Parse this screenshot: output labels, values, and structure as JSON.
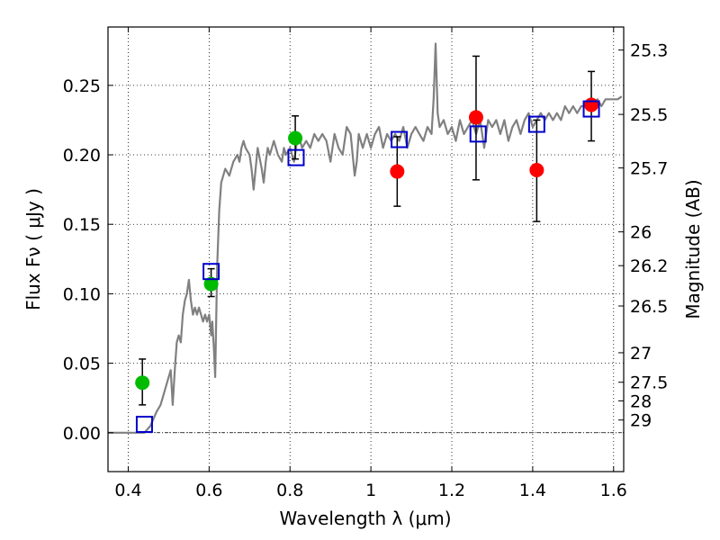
{
  "chart_data": {
    "type": "scatter",
    "xlabel": "Wavelength  λ (μm)",
    "ylabel": "Flux  Fν  ( μJy )",
    "ylabel_right": "Magnitude (AB)",
    "xlim": [
      0.35,
      1.625
    ],
    "ylim": [
      -0.028,
      0.292
    ],
    "x_ticks": [
      0.4,
      0.6,
      0.8,
      1.0,
      1.2,
      1.4,
      1.6
    ],
    "x_tick_labels": [
      "0.4",
      "0.6",
      "0.8",
      "1",
      "1.2",
      "1.4",
      "1.6"
    ],
    "y_ticks": [
      0.0,
      0.05,
      0.1,
      0.15,
      0.2,
      0.25
    ],
    "y_tick_labels": [
      "0.00",
      "0.05",
      "0.10",
      "0.15",
      "0.20",
      "0.25"
    ],
    "mag_ticks": [
      25.3,
      25.5,
      25.7,
      26,
      26.2,
      26.5,
      27,
      27.5,
      28,
      29
    ],
    "mag_tick_labels": [
      "25.3",
      "25.5",
      "25.7",
      "26",
      "26.2",
      "26.5",
      "27",
      "27.5",
      "28",
      "29"
    ],
    "grid": true,
    "series": [
      {
        "kind": "line",
        "color": "#808080",
        "x": [
          0.35,
          0.44,
          0.455,
          0.47,
          0.48,
          0.49,
          0.5,
          0.505,
          0.51,
          0.515,
          0.52,
          0.525,
          0.53,
          0.535,
          0.54,
          0.545,
          0.55,
          0.555,
          0.56,
          0.565,
          0.57,
          0.575,
          0.58,
          0.585,
          0.59,
          0.595,
          0.6,
          0.605,
          0.608,
          0.612,
          0.615,
          0.62,
          0.625,
          0.63,
          0.64,
          0.65,
          0.66,
          0.67,
          0.675,
          0.68,
          0.685,
          0.69,
          0.7,
          0.705,
          0.71,
          0.72,
          0.73,
          0.735,
          0.74,
          0.745,
          0.75,
          0.76,
          0.77,
          0.78,
          0.785,
          0.79,
          0.8,
          0.81,
          0.82,
          0.83,
          0.84,
          0.85,
          0.86,
          0.87,
          0.88,
          0.89,
          0.9,
          0.91,
          0.92,
          0.93,
          0.94,
          0.95,
          0.96,
          0.965,
          0.97,
          0.98,
          0.99,
          1.0,
          1.01,
          1.02,
          1.03,
          1.04,
          1.05,
          1.06,
          1.07,
          1.08,
          1.09,
          1.1,
          1.11,
          1.12,
          1.13,
          1.14,
          1.15,
          1.155,
          1.16,
          1.165,
          1.17,
          1.18,
          1.19,
          1.2,
          1.21,
          1.22,
          1.23,
          1.24,
          1.25,
          1.26,
          1.27,
          1.28,
          1.29,
          1.3,
          1.31,
          1.32,
          1.33,
          1.34,
          1.35,
          1.36,
          1.37,
          1.38,
          1.39,
          1.4,
          1.41,
          1.42,
          1.43,
          1.44,
          1.45,
          1.46,
          1.47,
          1.48,
          1.49,
          1.5,
          1.51,
          1.52,
          1.53,
          1.54,
          1.55,
          1.56,
          1.57,
          1.58,
          1.59,
          1.6,
          1.61,
          1.62
        ],
        "y": [
          0.0,
          0.0,
          0.005,
          0.015,
          0.02,
          0.03,
          0.04,
          0.045,
          0.02,
          0.045,
          0.065,
          0.07,
          0.065,
          0.085,
          0.095,
          0.1,
          0.11,
          0.095,
          0.085,
          0.09,
          0.085,
          0.09,
          0.085,
          0.08,
          0.085,
          0.08,
          0.085,
          0.07,
          0.08,
          0.06,
          0.04,
          0.12,
          0.16,
          0.18,
          0.19,
          0.185,
          0.195,
          0.2,
          0.195,
          0.205,
          0.21,
          0.205,
          0.2,
          0.19,
          0.175,
          0.205,
          0.19,
          0.18,
          0.195,
          0.205,
          0.2,
          0.21,
          0.2,
          0.195,
          0.205,
          0.2,
          0.205,
          0.195,
          0.215,
          0.205,
          0.21,
          0.205,
          0.215,
          0.21,
          0.215,
          0.21,
          0.195,
          0.215,
          0.205,
          0.2,
          0.22,
          0.215,
          0.185,
          0.195,
          0.215,
          0.205,
          0.215,
          0.205,
          0.215,
          0.22,
          0.205,
          0.215,
          0.21,
          0.215,
          0.21,
          0.22,
          0.205,
          0.215,
          0.22,
          0.215,
          0.21,
          0.22,
          0.215,
          0.24,
          0.28,
          0.23,
          0.22,
          0.225,
          0.215,
          0.22,
          0.21,
          0.225,
          0.215,
          0.22,
          0.225,
          0.215,
          0.225,
          0.205,
          0.225,
          0.22,
          0.225,
          0.215,
          0.225,
          0.21,
          0.22,
          0.225,
          0.215,
          0.225,
          0.23,
          0.22,
          0.225,
          0.23,
          0.225,
          0.23,
          0.225,
          0.23,
          0.225,
          0.235,
          0.23,
          0.235,
          0.23,
          0.235,
          0.235,
          0.24,
          0.235,
          0.24,
          0.235,
          0.24,
          0.24,
          0.24,
          0.24,
          0.242
        ]
      },
      {
        "kind": "points",
        "marker": "circle",
        "color": "#00bb00",
        "x": [
          0.435,
          0.605,
          0.813
        ],
        "y": [
          0.036,
          0.107,
          0.212
        ],
        "yerr_low": [
          0.016,
          0.009,
          0.015
        ],
        "yerr_high": [
          0.017,
          0.011,
          0.016
        ]
      },
      {
        "kind": "points",
        "marker": "circle",
        "color": "#ff0000",
        "x": [
          1.065,
          1.26,
          1.41,
          1.545
        ],
        "y": [
          0.188,
          0.227,
          0.189,
          0.236
        ],
        "yerr_low": [
          0.025,
          0.045,
          0.037,
          0.026
        ],
        "yerr_high": [
          0.025,
          0.044,
          0.036,
          0.024
        ]
      },
      {
        "kind": "points",
        "marker": "open-square",
        "color": "#0000cc",
        "x": [
          0.44,
          0.605,
          0.815,
          1.07,
          1.265,
          1.41,
          1.545
        ],
        "y": [
          0.006,
          0.116,
          0.198,
          0.211,
          0.215,
          0.222,
          0.233
        ]
      }
    ]
  }
}
